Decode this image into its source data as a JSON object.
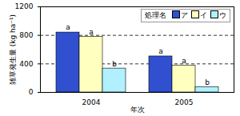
{
  "chart_data": {
    "type": "bar",
    "categories": [
      "2004",
      "2005"
    ],
    "x_label": "年次",
    "y_label": "雑草発生量 (kg ha⁻¹)",
    "legend_title": "処理名",
    "series": [
      {
        "name": "ア",
        "color": "#3050d0",
        "values": [
          840,
          505
        ],
        "letters": [
          "a",
          "a"
        ]
      },
      {
        "name": "イ",
        "color": "#ffffc0",
        "values": [
          780,
          375
        ],
        "letters": [
          "a",
          "a"
        ]
      },
      {
        "name": "ウ",
        "color": "#b0f0ff",
        "values": [
          335,
          75
        ],
        "letters": [
          "b",
          "b"
        ]
      }
    ],
    "ylim": [
      0,
      1200
    ],
    "yticks": [
      0,
      400,
      800,
      1200
    ],
    "grid": true,
    "legend": "upper right"
  }
}
